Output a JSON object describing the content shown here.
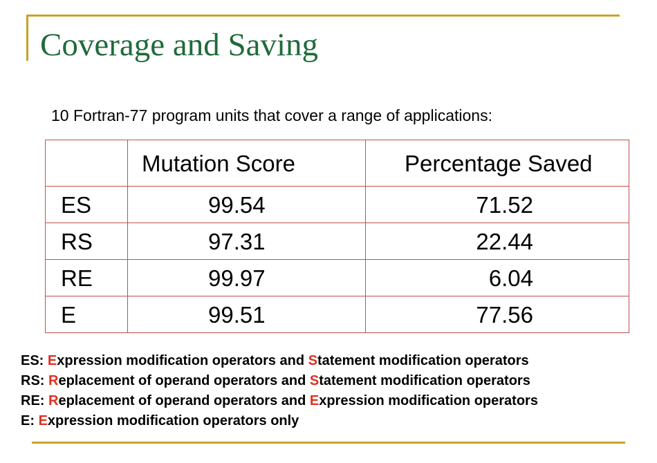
{
  "title": "Coverage and Saving",
  "intro": "10 Fortran-77 program units that cover a range of applications:",
  "table": {
    "headers": [
      "",
      "Mutation Score",
      "Percentage Saved"
    ],
    "rows": [
      {
        "name": "ES",
        "mutation_score": "99.54",
        "percentage_saved": "71.52"
      },
      {
        "name": "RS",
        "mutation_score": "97.31",
        "percentage_saved": "22.44"
      },
      {
        "name": "RE",
        "mutation_score": "99.97",
        "percentage_saved": "6.04"
      },
      {
        "name": "E",
        "mutation_score": "99.51",
        "percentage_saved": "77.56"
      }
    ]
  },
  "legend": [
    {
      "parts": [
        {
          "t": "ES: ",
          "hl": false
        },
        {
          "t": "E",
          "hl": true
        },
        {
          "t": "xpression modification operators and ",
          "hl": false
        },
        {
          "t": "S",
          "hl": true
        },
        {
          "t": "tatement modification operators",
          "hl": false
        }
      ]
    },
    {
      "parts": [
        {
          "t": "RS: ",
          "hl": false
        },
        {
          "t": "R",
          "hl": true
        },
        {
          "t": "eplacement of operand operators and ",
          "hl": false
        },
        {
          "t": "S",
          "hl": true
        },
        {
          "t": "tatement modification operators",
          "hl": false
        }
      ]
    },
    {
      "parts": [
        {
          "t": "RE: ",
          "hl": false
        },
        {
          "t": "R",
          "hl": true
        },
        {
          "t": "eplacement of operand operators and ",
          "hl": false
        },
        {
          "t": "E",
          "hl": true
        },
        {
          "t": "xpression modification operators",
          "hl": false
        }
      ]
    },
    {
      "parts": [
        {
          "t": "E: ",
          "hl": false
        },
        {
          "t": "E",
          "hl": true
        },
        {
          "t": "xpression modification operators only",
          "hl": false
        }
      ]
    }
  ],
  "colors": {
    "title": "#1f6b3a",
    "rule": "#c9a227",
    "border": "#c0504d",
    "highlight": "#e0301e"
  }
}
